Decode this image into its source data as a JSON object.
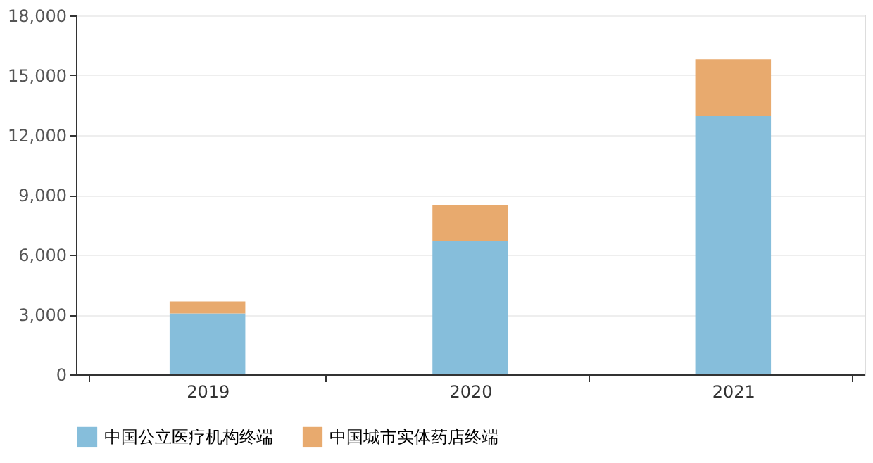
{
  "chart_data": {
    "type": "bar",
    "stacked": true,
    "categories": [
      "2019",
      "2020",
      "2021"
    ],
    "series": [
      {
        "name": "中国公立医疗机构终端",
        "color": "#86bedb",
        "values": [
          3050,
          6700,
          12950
        ]
      },
      {
        "name": "中国城市实体药店终端",
        "color": "#e8aa6e",
        "values": [
          600,
          1800,
          2850
        ]
      }
    ],
    "ylim": [
      0,
      18000
    ],
    "yticks": [
      0,
      {
        "value": 3000,
        "label": "3,000"
      },
      {
        "value": 6000,
        "label": "6,000"
      },
      {
        "value": 9000,
        "label": "9,000"
      },
      {
        "value": 12000,
        "label": "12,000"
      },
      {
        "value": 15000,
        "label": "15,000"
      },
      {
        "value": 18000,
        "label": "18,000"
      }
    ],
    "grid": "y",
    "legend": "bottom"
  }
}
